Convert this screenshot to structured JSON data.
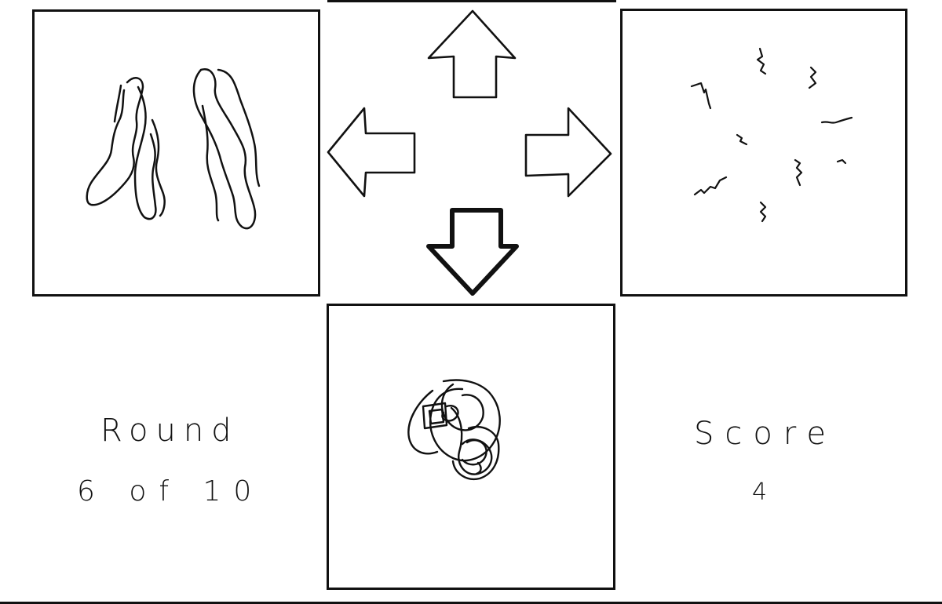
{
  "hud": {
    "round_label": "Round",
    "round_value": "6 of 10",
    "score_label": "Score",
    "score_value": "4"
  },
  "arrows": [
    {
      "direction": "up",
      "selected": false
    },
    {
      "direction": "left",
      "selected": false
    },
    {
      "direction": "right",
      "selected": false
    },
    {
      "direction": "down",
      "selected": true
    }
  ],
  "panels": [
    {
      "position": "left",
      "contents": "wavy-strokes-drawing"
    },
    {
      "position": "right",
      "contents": "scattered-squiggles-drawing"
    },
    {
      "position": "bottom",
      "contents": "spiral-scribble-drawing"
    }
  ],
  "colors": {
    "ink": "#111111",
    "background": "#ffffff"
  }
}
